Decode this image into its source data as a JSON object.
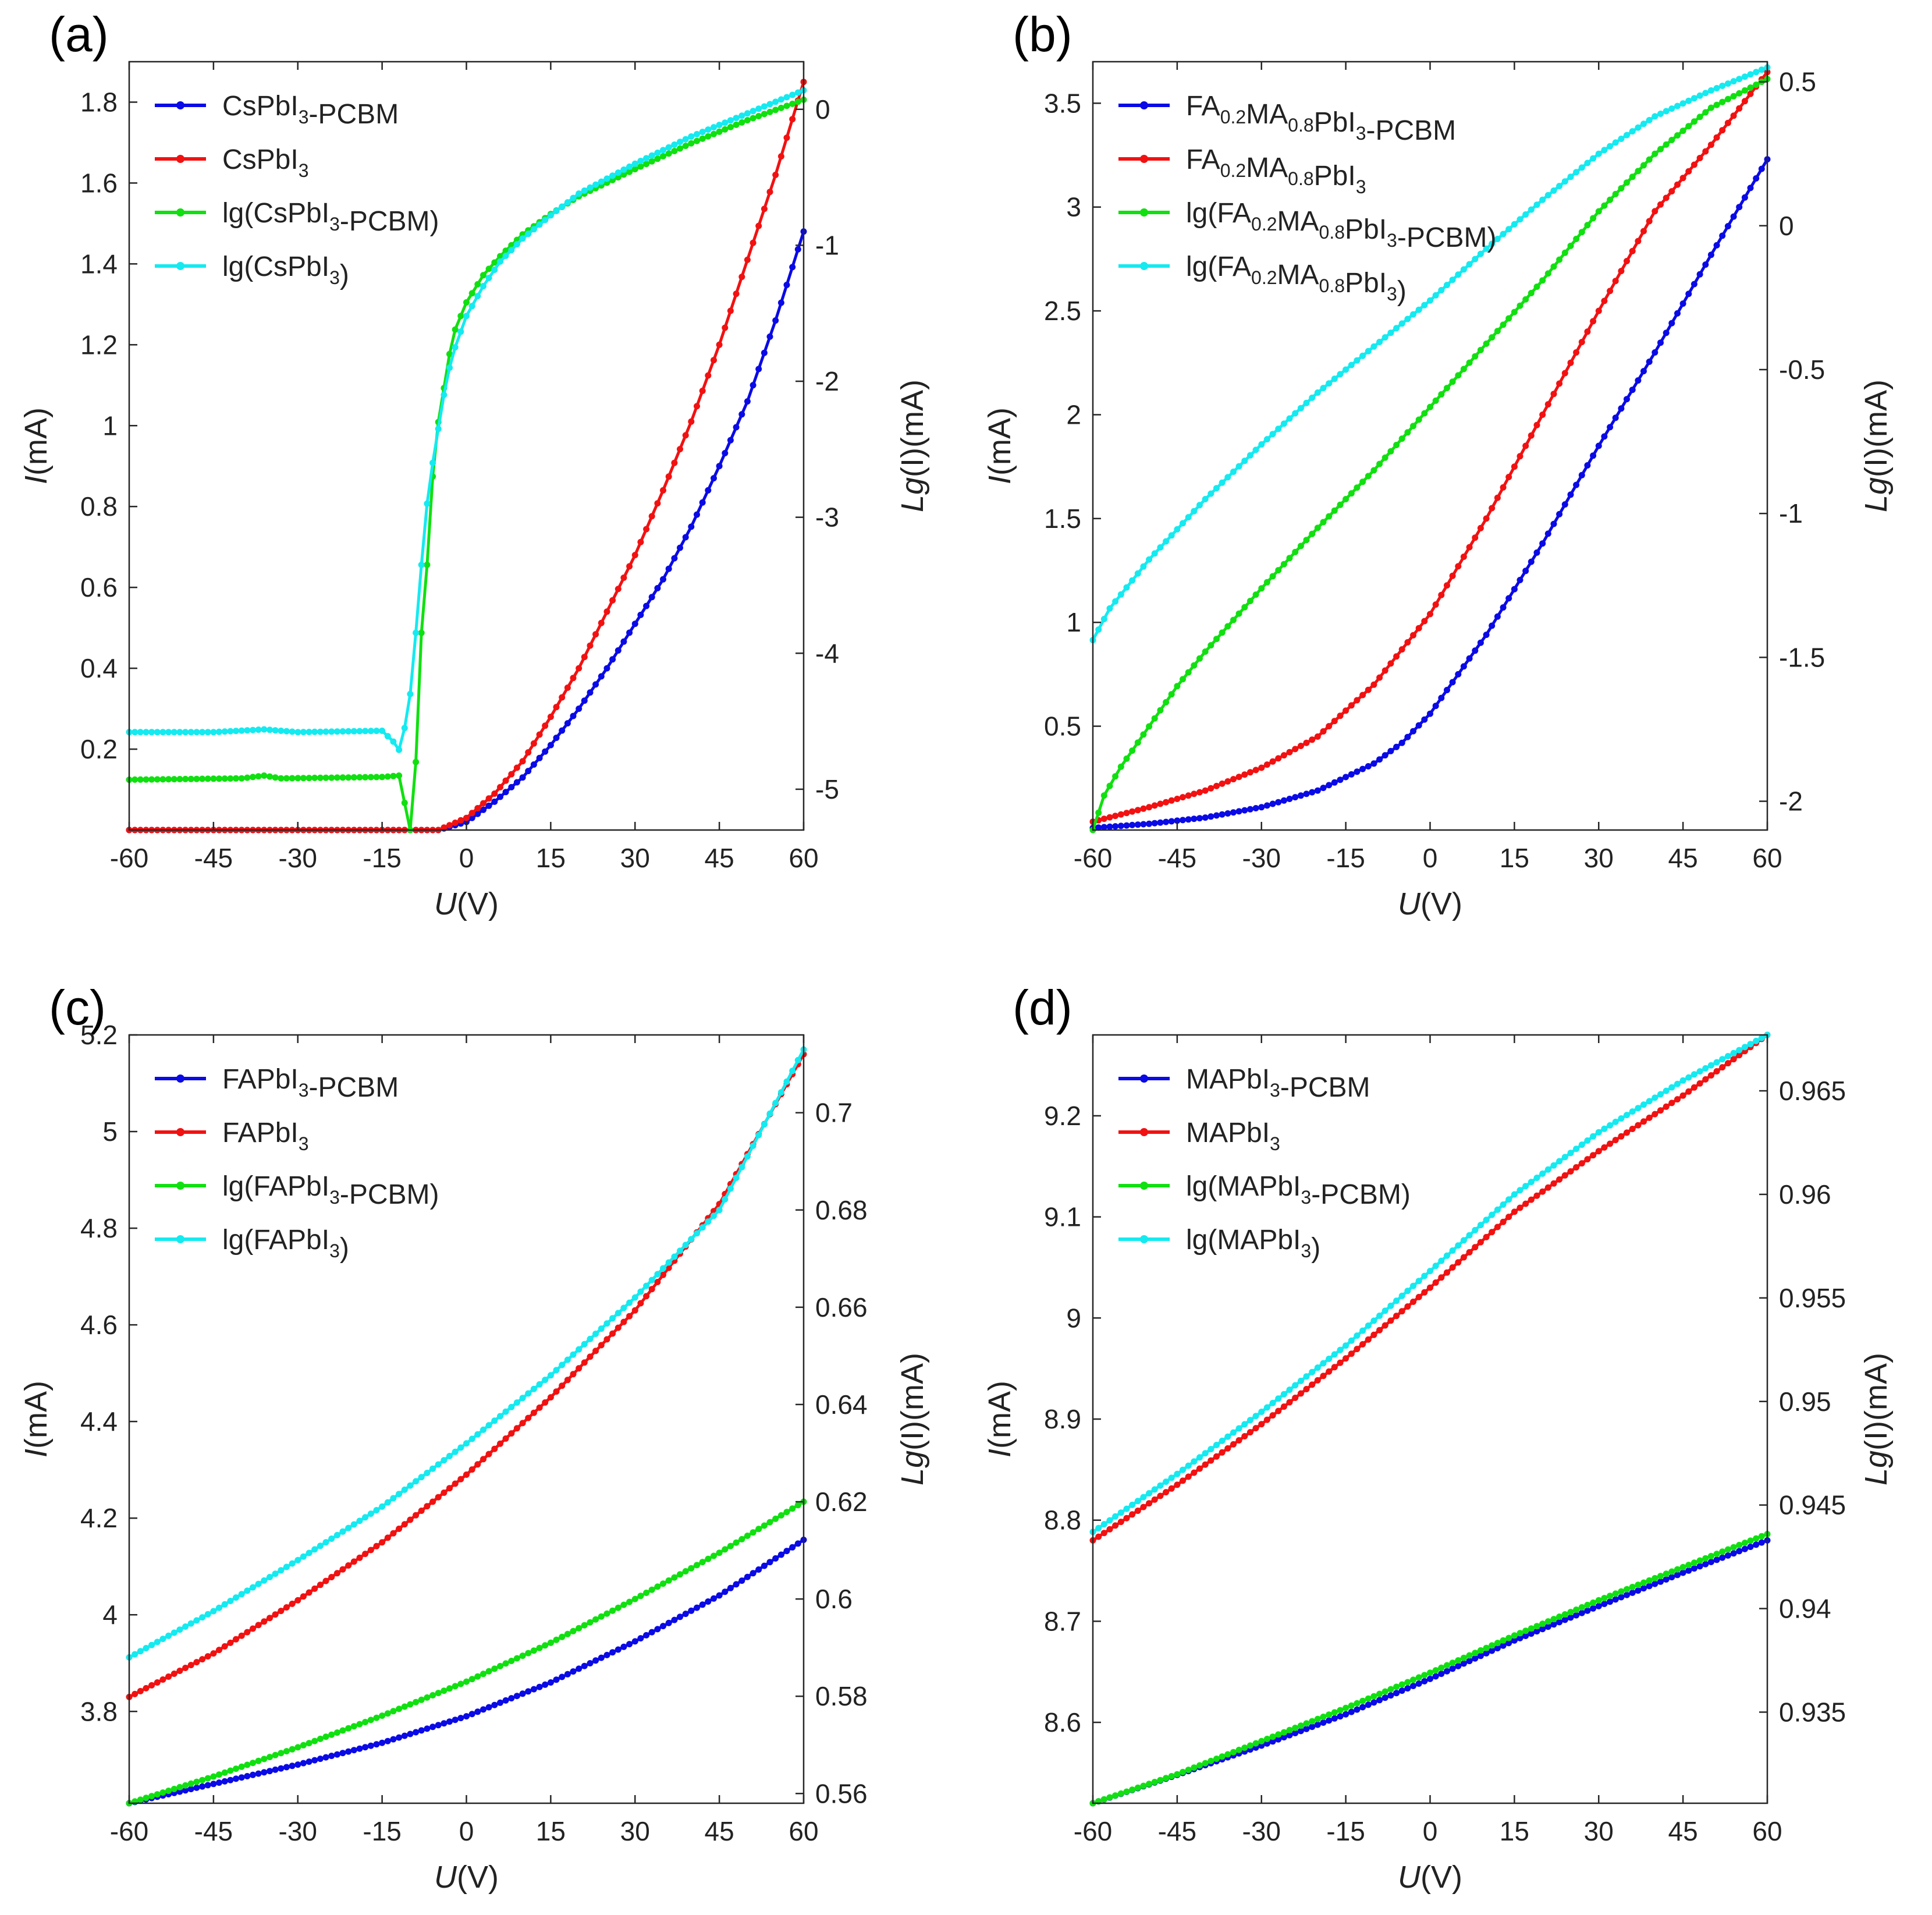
{
  "colors": {
    "blue": "#0a0ae6",
    "red": "#f21111",
    "green": "#10e010",
    "cyan": "#14eaf0"
  },
  "chart_data": [
    {
      "type": "line",
      "panel_label": "(a)",
      "xlabel": "U(V)",
      "ylabel": "I(mA)",
      "ylabel_right": "Lg(I)(mA)",
      "xlim": [
        -60,
        60
      ],
      "xticks": [
        -60,
        -45,
        -30,
        -15,
        0,
        15,
        30,
        45,
        60
      ],
      "ylim": [
        0,
        1.9
      ],
      "yticks": [
        0.2,
        0.4,
        0.6,
        0.8,
        1,
        1.2,
        1.4,
        1.6,
        1.8
      ],
      "y2lim": [
        -5.3,
        0.35
      ],
      "y2ticks": [
        -5,
        -4,
        -3,
        -2,
        -1,
        0
      ],
      "legend": [
        {
          "label": "CsPbI3-PCBM",
          "parts": [
            [
              "CsPbI",
              ""
            ],
            [
              "3",
              "sub"
            ],
            [
              "-PCBM",
              ""
            ]
          ],
          "color": "#0a0ae6"
        },
        {
          "label": "CsPbI3",
          "parts": [
            [
              "CsPbI",
              ""
            ],
            [
              "3",
              "sub"
            ]
          ],
          "color": "#f21111"
        },
        {
          "label": "lg(CsPbI3-PCBM)",
          "parts": [
            [
              "lg(CsPbI",
              ""
            ],
            [
              "3",
              "sub"
            ],
            [
              "-PCBM)",
              ""
            ]
          ],
          "color": "#10e010"
        },
        {
          "label": "lg(CsPbI3)",
          "parts": [
            [
              "lg(CsPbI",
              ""
            ],
            [
              "3",
              "sub"
            ],
            [
              ")",
              ""
            ]
          ],
          "color": "#14eaf0"
        }
      ],
      "series": [
        {
          "name": "CsPbI3-PCBM",
          "axis": "left",
          "color": "#0a0ae6",
          "x": [
            -60,
            -5,
            0,
            5,
            10,
            15,
            20,
            25,
            30,
            35,
            40,
            45,
            50,
            55,
            60
          ],
          "y": [
            0,
            0,
            0.02,
            0.07,
            0.13,
            0.21,
            0.3,
            0.4,
            0.51,
            0.62,
            0.75,
            0.9,
            1.06,
            1.26,
            1.48
          ]
        },
        {
          "name": "CsPbI3",
          "axis": "left",
          "color": "#f21111",
          "x": [
            -60,
            -5,
            0,
            5,
            10,
            15,
            20,
            25,
            30,
            35,
            40,
            45,
            50,
            55,
            60
          ],
          "y": [
            0,
            0,
            0.03,
            0.09,
            0.17,
            0.28,
            0.4,
            0.54,
            0.68,
            0.84,
            1.01,
            1.2,
            1.41,
            1.62,
            1.85
          ]
        },
        {
          "name": "lg(CsPbI3-PCBM)",
          "axis": "right",
          "color": "#10e010",
          "x": [
            -60,
            -40,
            -36,
            -33,
            -15,
            -12,
            -10,
            -9,
            -8,
            -7,
            -6,
            -5,
            -4,
            -3,
            -2,
            0,
            3,
            6,
            10,
            15,
            20,
            30,
            40,
            50,
            60
          ],
          "y": [
            -4.93,
            -4.92,
            -4.9,
            -4.92,
            -4.91,
            -4.9,
            -5.3,
            -4.8,
            -3.85,
            -3.35,
            -2.7,
            -2.3,
            -2.05,
            -1.8,
            -1.62,
            -1.42,
            -1.22,
            -1.08,
            -0.92,
            -0.77,
            -0.64,
            -0.44,
            -0.25,
            -0.08,
            0.07
          ]
        },
        {
          "name": "lg(CsPbI3)",
          "axis": "right",
          "color": "#14eaf0",
          "x": [
            -60,
            -45,
            -36,
            -30,
            -15,
            -13,
            -12,
            -11,
            -10,
            -9,
            -8,
            -7,
            -6,
            -5,
            -4,
            -3,
            -2,
            0,
            3,
            6,
            10,
            15,
            20,
            30,
            40,
            50,
            60
          ],
          "y": [
            -4.58,
            -4.58,
            -4.56,
            -4.58,
            -4.57,
            -4.65,
            -4.71,
            -4.55,
            -4.3,
            -3.85,
            -3.35,
            -2.9,
            -2.6,
            -2.35,
            -2.1,
            -1.9,
            -1.75,
            -1.52,
            -1.3,
            -1.12,
            -0.95,
            -0.78,
            -0.62,
            -0.4,
            -0.2,
            -0.03,
            0.14
          ]
        }
      ]
    },
    {
      "type": "line",
      "panel_label": "(b)",
      "xlabel": "U(V)",
      "ylabel": "I(mA)",
      "ylabel_right": "Lg(I)(mA)",
      "xlim": [
        -60,
        60
      ],
      "xticks": [
        -60,
        -45,
        -30,
        -15,
        0,
        15,
        30,
        45,
        60
      ],
      "ylim": [
        0,
        3.7
      ],
      "yticks": [
        0.5,
        1,
        1.5,
        2,
        2.5,
        3,
        3.5
      ],
      "y2lim": [
        -2.1,
        0.57
      ],
      "y2ticks": [
        -2,
        -1.5,
        -1,
        -0.5,
        0,
        0.5
      ],
      "legend": [
        {
          "label": "FA0.2MA0.8PbI3-PCBM",
          "parts": [
            [
              "FA",
              ""
            ],
            [
              "0.2",
              "sub"
            ],
            [
              "MA",
              ""
            ],
            [
              "0.8",
              "sub"
            ],
            [
              "PbI",
              ""
            ],
            [
              "3",
              "sub"
            ],
            [
              "-PCBM",
              ""
            ]
          ],
          "color": "#0a0ae6"
        },
        {
          "label": "FA0.2MA0.8PbI3",
          "parts": [
            [
              "FA",
              ""
            ],
            [
              "0.2",
              "sub"
            ],
            [
              "MA",
              ""
            ],
            [
              "0.8",
              "sub"
            ],
            [
              "PbI",
              ""
            ],
            [
              "3",
              "sub"
            ]
          ],
          "color": "#f21111"
        },
        {
          "label": "lg(FA0.2MA0.8PbI3-PCBM)",
          "parts": [
            [
              "lg(FA",
              ""
            ],
            [
              "0.2",
              "sub"
            ],
            [
              "MA",
              ""
            ],
            [
              "0.8",
              "sub"
            ],
            [
              "PbI",
              ""
            ],
            [
              "3",
              "sub"
            ],
            [
              "-PCBM)",
              ""
            ]
          ],
          "color": "#10e010"
        },
        {
          "label": "lg(FA0.2MA0.8PbI3)",
          "parts": [
            [
              "lg(FA",
              ""
            ],
            [
              "0.2",
              "sub"
            ],
            [
              "MA",
              ""
            ],
            [
              "0.8",
              "sub"
            ],
            [
              "PbI",
              ""
            ],
            [
              "3",
              "sub"
            ],
            [
              ")",
              ""
            ]
          ],
          "color": "#14eaf0"
        }
      ],
      "series": [
        {
          "name": "FA0.2MA0.8PbI3-PCBM",
          "axis": "left",
          "color": "#0a0ae6",
          "x": [
            -60,
            -50,
            -40,
            -30,
            -20,
            -10,
            -5,
            0,
            10,
            20,
            30,
            40,
            50,
            60
          ],
          "y": [
            0.01,
            0.03,
            0.06,
            0.11,
            0.19,
            0.32,
            0.42,
            0.56,
            0.94,
            1.38,
            1.85,
            2.3,
            2.77,
            3.23
          ]
        },
        {
          "name": "FA0.2MA0.8PbI3",
          "axis": "left",
          "color": "#f21111",
          "x": [
            -60,
            -50,
            -40,
            -30,
            -20,
            -10,
            0,
            10,
            20,
            30,
            40,
            50,
            60
          ],
          "y": [
            0.04,
            0.11,
            0.19,
            0.3,
            0.45,
            0.7,
            1.04,
            1.5,
            2.0,
            2.5,
            2.98,
            3.3,
            3.65
          ]
        },
        {
          "name": "lg(FA0.2MA0.8PbI3-PCBM)",
          "axis": "right",
          "color": "#10e010",
          "x": [
            -60,
            -58,
            -55,
            -50,
            -45,
            -40,
            -30,
            -20,
            -10,
            0,
            10,
            20,
            30,
            40,
            50,
            60
          ],
          "y": [
            -2.1,
            -1.98,
            -1.88,
            -1.74,
            -1.6,
            -1.48,
            -1.26,
            -1.05,
            -0.85,
            -0.63,
            -0.41,
            -0.19,
            0.05,
            0.25,
            0.41,
            0.51
          ]
        },
        {
          "name": "lg(FA0.2MA0.8PbI3)",
          "axis": "right",
          "color": "#14eaf0",
          "x": [
            -60,
            -57,
            -50,
            -40,
            -30,
            -20,
            -10,
            0,
            10,
            20,
            30,
            40,
            50,
            60
          ],
          "y": [
            -1.44,
            -1.33,
            -1.16,
            -0.95,
            -0.76,
            -0.58,
            -0.42,
            -0.26,
            -0.08,
            0.09,
            0.25,
            0.38,
            0.47,
            0.55
          ]
        }
      ]
    },
    {
      "type": "line",
      "panel_label": "(c)",
      "xlabel": "U(V)",
      "ylabel": "I(mA)",
      "ylabel_right": "Lg(I)(mA)",
      "xlim": [
        -60,
        60
      ],
      "xticks": [
        -60,
        -45,
        -30,
        -15,
        0,
        15,
        30,
        45,
        60
      ],
      "ylim": [
        3.61,
        5.2
      ],
      "yticks": [
        3.8,
        4,
        4.2,
        4.4,
        4.6,
        4.8,
        5,
        5.2
      ],
      "y2lim": [
        0.558,
        0.716
      ],
      "y2ticks": [
        0.56,
        0.58,
        0.6,
        0.62,
        0.64,
        0.66,
        0.68,
        0.7
      ],
      "legend": [
        {
          "label": "FAPbI3-PCBM",
          "parts": [
            [
              "FAPbI",
              ""
            ],
            [
              "3",
              "sub"
            ],
            [
              "-PCBM",
              ""
            ]
          ],
          "color": "#0a0ae6"
        },
        {
          "label": "FAPbI3",
          "parts": [
            [
              "FAPbI",
              ""
            ],
            [
              "3",
              "sub"
            ]
          ],
          "color": "#f21111"
        },
        {
          "label": "lg(FAPbI3-PCBM)",
          "parts": [
            [
              "lg(FAPbI",
              ""
            ],
            [
              "3",
              "sub"
            ],
            [
              "-PCBM)",
              ""
            ]
          ],
          "color": "#10e010"
        },
        {
          "label": "lg(FAPbI3)",
          "parts": [
            [
              "lg(FAPbI",
              ""
            ],
            [
              "3",
              "sub"
            ],
            [
              ")",
              ""
            ]
          ],
          "color": "#14eaf0"
        }
      ],
      "series": [
        {
          "name": "FAPbI3-PCBM",
          "axis": "left",
          "color": "#0a0ae6",
          "x": [
            -60,
            -45,
            -30,
            -15,
            0,
            15,
            30,
            45,
            60
          ],
          "y": [
            3.61,
            3.65,
            3.69,
            3.735,
            3.79,
            3.86,
            3.945,
            4.04,
            4.155
          ]
        },
        {
          "name": "FAPbI3",
          "axis": "left",
          "color": "#f21111",
          "x": [
            -60,
            -45,
            -30,
            -15,
            0,
            15,
            30,
            45,
            60
          ],
          "y": [
            3.83,
            3.92,
            4.03,
            4.15,
            4.29,
            4.45,
            4.63,
            4.85,
            5.16
          ]
        },
        {
          "name": "lg(FAPbI3-PCBM)",
          "axis": "right",
          "color": "#10e010",
          "x": [
            -60,
            -45,
            -30,
            -15,
            0,
            15,
            30,
            45,
            60
          ],
          "y": [
            0.558,
            0.5635,
            0.5695,
            0.576,
            0.583,
            0.591,
            0.6,
            0.6095,
            0.62
          ]
        },
        {
          "name": "lg(FAPbI3)",
          "axis": "right",
          "color": "#14eaf0",
          "x": [
            -60,
            -45,
            -30,
            -15,
            0,
            15,
            30,
            45,
            60
          ],
          "y": [
            0.588,
            0.5975,
            0.608,
            0.619,
            0.632,
            0.646,
            0.662,
            0.68,
            0.713
          ]
        }
      ]
    },
    {
      "type": "line",
      "panel_label": "(d)",
      "xlabel": "U(V)",
      "ylabel": "I(mA)",
      "ylabel_right": "Lg(I)(mA)",
      "xlim": [
        -60,
        60
      ],
      "xticks": [
        -60,
        -45,
        -30,
        -15,
        0,
        15,
        30,
        45,
        60
      ],
      "ylim": [
        8.52,
        9.28
      ],
      "yticks": [
        8.6,
        8.7,
        8.8,
        8.9,
        9,
        9.1,
        9.2
      ],
      "y2lim": [
        0.9306,
        0.9677
      ],
      "y2ticks": [
        0.935,
        0.94,
        0.945,
        0.95,
        0.955,
        0.96,
        0.965
      ],
      "legend": [
        {
          "label": "MAPbI3-PCBM",
          "parts": [
            [
              "MAPbI",
              ""
            ],
            [
              "3",
              "sub"
            ],
            [
              "-PCBM",
              ""
            ]
          ],
          "color": "#0a0ae6"
        },
        {
          "label": "MAPbI3",
          "parts": [
            [
              "MAPbI",
              ""
            ],
            [
              "3",
              "sub"
            ]
          ],
          "color": "#f21111"
        },
        {
          "label": "lg(MAPbI3-PCBM)",
          "parts": [
            [
              "lg(MAPbI",
              ""
            ],
            [
              "3",
              "sub"
            ],
            [
              "-PCBM)",
              ""
            ]
          ],
          "color": "#10e010"
        },
        {
          "label": "lg(MAPbI3)",
          "parts": [
            [
              "lg(MAPbI",
              ""
            ],
            [
              "3",
              "sub"
            ],
            [
              ")",
              ""
            ]
          ],
          "color": "#14eaf0"
        }
      ],
      "series": [
        {
          "name": "MAPbI3-PCBM",
          "axis": "left",
          "color": "#0a0ae6",
          "x": [
            -60,
            -45,
            -30,
            -15,
            0,
            15,
            30,
            45,
            60
          ],
          "y": [
            8.52,
            8.548,
            8.577,
            8.608,
            8.643,
            8.681,
            8.715,
            8.748,
            8.78
          ]
        },
        {
          "name": "MAPbI3",
          "axis": "left",
          "color": "#f21111",
          "x": [
            -60,
            -45,
            -30,
            -15,
            0,
            15,
            30,
            45,
            60
          ],
          "y": [
            8.78,
            8.835,
            8.895,
            8.96,
            9.03,
            9.105,
            9.165,
            9.22,
            9.28
          ]
        },
        {
          "name": "lg(MAPbI3-PCBM)",
          "axis": "right",
          "color": "#10e010",
          "x": [
            -60,
            -45,
            -30,
            -15,
            0,
            15,
            30,
            45,
            60
          ],
          "y": [
            0.9306,
            0.932,
            0.9336,
            0.9352,
            0.9369,
            0.9387,
            0.9404,
            0.942,
            0.9436
          ]
        },
        {
          "name": "lg(MAPbI3)",
          "axis": "right",
          "color": "#14eaf0",
          "x": [
            -60,
            -45,
            -30,
            -15,
            0,
            15,
            30,
            45,
            60
          ],
          "y": [
            0.9437,
            0.9465,
            0.9495,
            0.9527,
            0.9563,
            0.96,
            0.963,
            0.9655,
            0.9677
          ]
        }
      ]
    }
  ]
}
